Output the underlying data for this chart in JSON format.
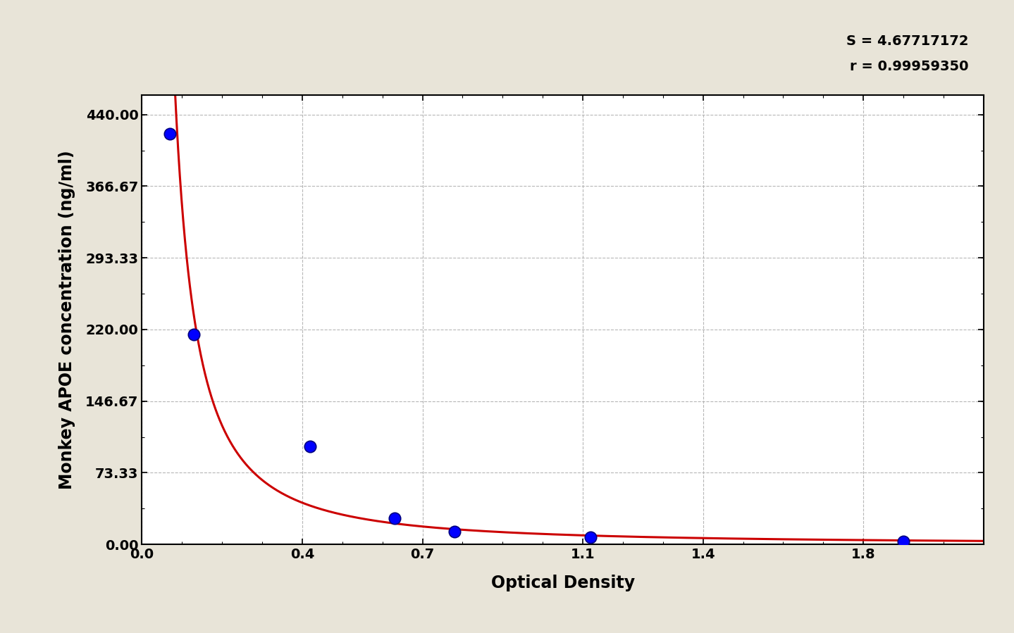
{
  "title": "",
  "xlabel": "Optical Density",
  "ylabel": "Monkey APOE concentration (ng/ml)",
  "background_color": "#e8e4d8",
  "plot_background": "#ffffff",
  "annotation_s": "S = 4.67717172",
  "annotation_r": "r = 0.99959350",
  "data_points_x": [
    0.07,
    0.13,
    0.42,
    0.63,
    0.78,
    1.12,
    1.9
  ],
  "data_points_y": [
    420.0,
    215.0,
    100.0,
    27.0,
    13.0,
    7.0,
    3.0
  ],
  "xlim": [
    0.0,
    2.1
  ],
  "ylim": [
    0.0,
    460.0
  ],
  "xticks": [
    0.0,
    0.4,
    0.7,
    1.1,
    1.4,
    1.8
  ],
  "yticks": [
    0.0,
    73.33,
    146.67,
    220.0,
    293.33,
    366.67,
    440.0
  ],
  "ytick_labels": [
    "0.00",
    "73.33",
    "146.67",
    "220.00",
    "293.33",
    "366.67",
    "440.00"
  ],
  "xtick_labels": [
    "0.0",
    "0.4",
    "0.7",
    "1.1",
    "1.4",
    "1.8"
  ],
  "dot_color": "#0000ff",
  "line_color": "#cc0000",
  "dot_size": 140,
  "dot_edgecolor": "#000080",
  "grid_color": "#b0b0b0",
  "axis_label_fontsize": 17,
  "tick_fontsize": 14,
  "annotation_fontsize": 14
}
